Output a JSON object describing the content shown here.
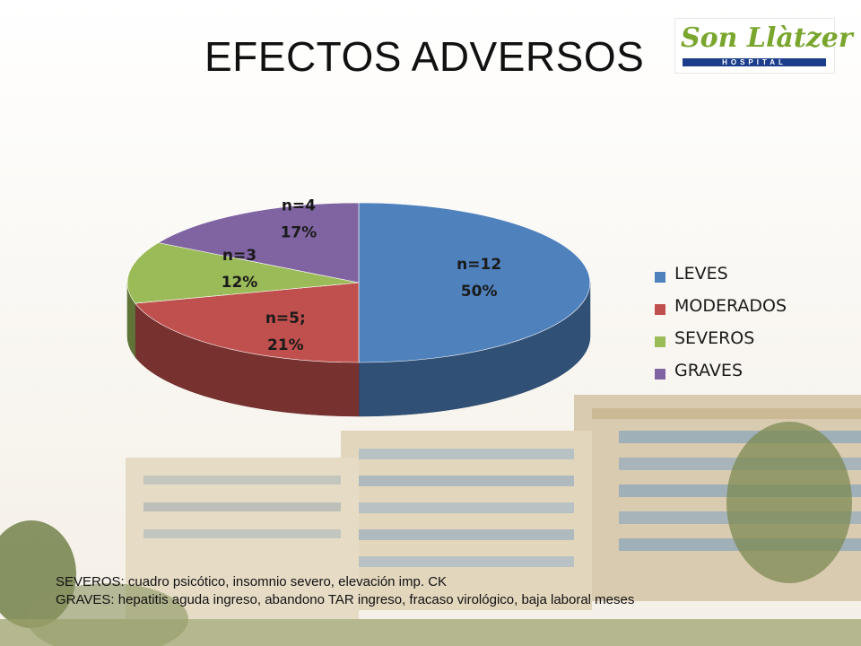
{
  "title": "EFECTOS ADVERSOS",
  "logo": {
    "name": "Son Llàtzer",
    "subtitle": "HOSPITAL"
  },
  "chart_data": {
    "type": "pie",
    "style": "3d",
    "categories": [
      "LEVES",
      "MODERADOS",
      "SEVEROS",
      "GRAVES"
    ],
    "values": [
      12,
      5,
      3,
      4
    ],
    "percentages": [
      50,
      21,
      12,
      17
    ],
    "data_labels": [
      [
        "n=12",
        "50%"
      ],
      [
        "n=5;",
        "21%"
      ],
      [
        "n=3",
        "12%"
      ],
      [
        "n=4",
        "17%"
      ]
    ],
    "colors": [
      "#4f81bd",
      "#c0504d",
      "#9bbb59",
      "#8064a2"
    ],
    "legend_position": "right"
  },
  "footnotes": [
    "SEVEROS: cuadro psicótico, insomnio severo, elevación imp. CK",
    "GRAVES: hepatitis aguda ingreso, abandono TAR ingreso, fracaso virológico, baja laboral meses"
  ],
  "background": {
    "image": "hospital-building-photo"
  }
}
